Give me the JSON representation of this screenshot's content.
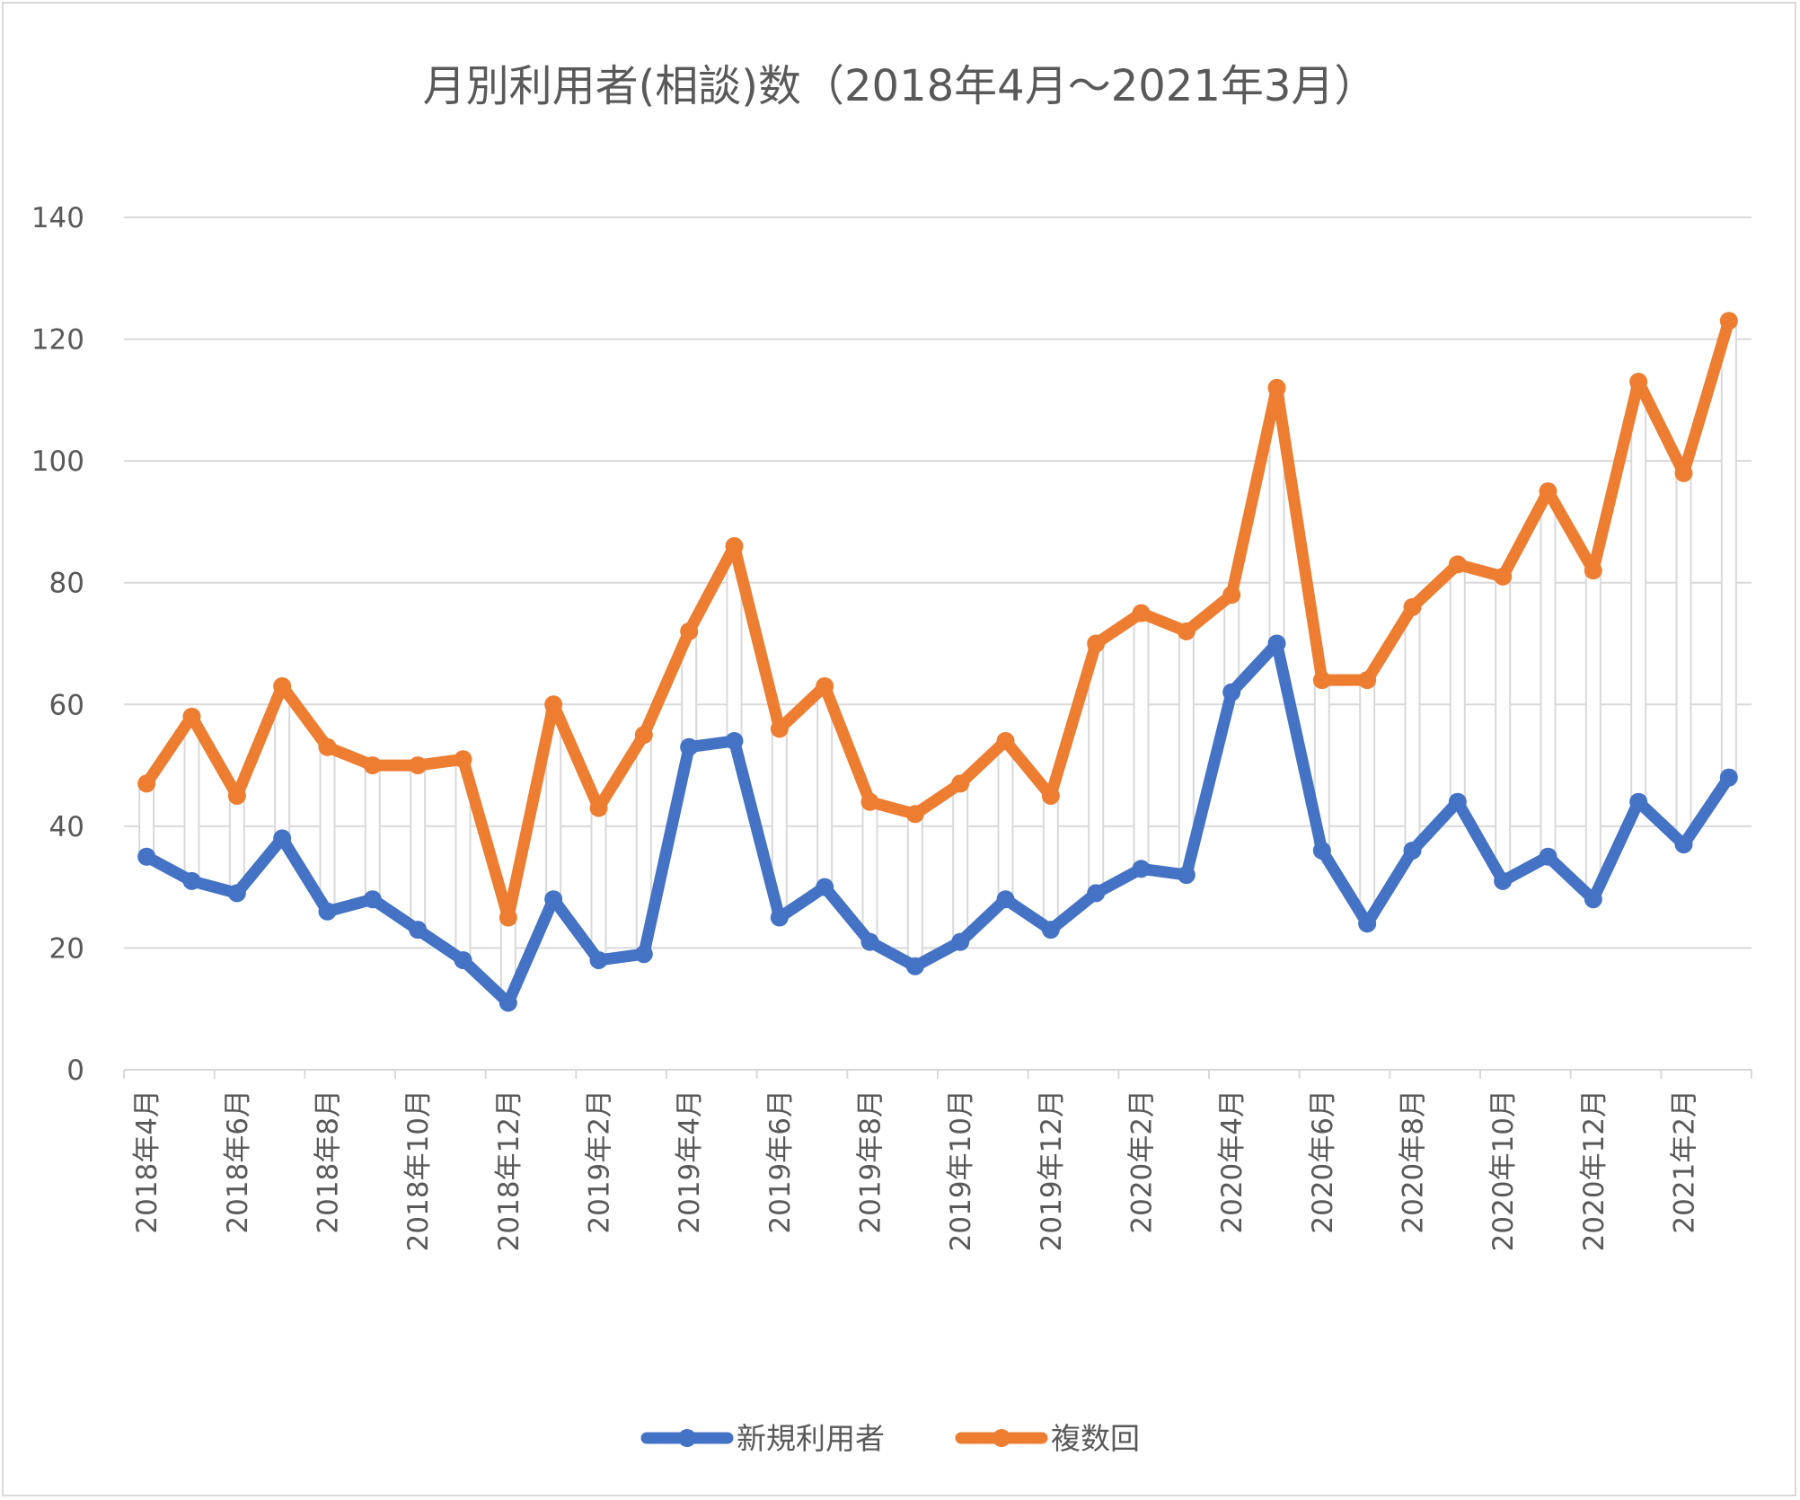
{
  "chart_data": {
    "type": "line",
    "title": "月別利用者(相談)数（2018年4月～2021年3月）",
    "xlabel": "",
    "ylabel": "",
    "ylim": [
      0,
      140
    ],
    "yticks": [
      0,
      20,
      40,
      60,
      80,
      100,
      120,
      140
    ],
    "grid": true,
    "legend_position": "bottom",
    "high_low_lines": true,
    "categories": [
      "2018年4月",
      "2018年5月",
      "2018年6月",
      "2018年7月",
      "2018年8月",
      "2018年9月",
      "2018年10月",
      "2018年11月",
      "2018年12月",
      "2019年1月",
      "2019年2月",
      "2019年3月",
      "2019年4月",
      "2019年5月",
      "2019年6月",
      "2019年7月",
      "2019年8月",
      "2019年9月",
      "2019年10月",
      "2019年11月",
      "2019年12月",
      "2020年1月",
      "2020年2月",
      "2020年3月",
      "2020年4月",
      "2020年5月",
      "2020年6月",
      "2020年7月",
      "2020年8月",
      "2020年9月",
      "2020年10月",
      "2020年11月",
      "2020年12月",
      "2021年1月",
      "2021年2月",
      "2021年3月"
    ],
    "labeled_categories": [
      "2018年4月",
      "2018年6月",
      "2018年8月",
      "2018年10月",
      "2018年12月",
      "2019年2月",
      "2019年4月",
      "2019年6月",
      "2019年8月",
      "2019年10月",
      "2019年12月",
      "2020年2月",
      "2020年4月",
      "2020年6月",
      "2020年8月",
      "2020年10月",
      "2020年12月",
      "2021年2月"
    ],
    "series": [
      {
        "name": "新規利用者",
        "color": "#4472c4",
        "values": [
          35,
          31,
          29,
          38,
          26,
          28,
          23,
          18,
          11,
          28,
          18,
          19,
          53,
          54,
          25,
          30,
          21,
          17,
          21,
          28,
          23,
          29,
          33,
          32,
          62,
          70,
          36,
          24,
          36,
          44,
          31,
          35,
          28,
          44,
          37,
          48
        ]
      },
      {
        "name": "複数回",
        "color": "#ed7d31",
        "values": [
          47,
          58,
          45,
          63,
          53,
          50,
          50,
          51,
          25,
          60,
          43,
          55,
          72,
          86,
          56,
          63,
          44,
          42,
          47,
          54,
          45,
          70,
          75,
          72,
          78,
          112,
          64,
          64,
          76,
          83,
          81,
          95,
          82,
          113,
          98,
          123
        ]
      }
    ]
  }
}
